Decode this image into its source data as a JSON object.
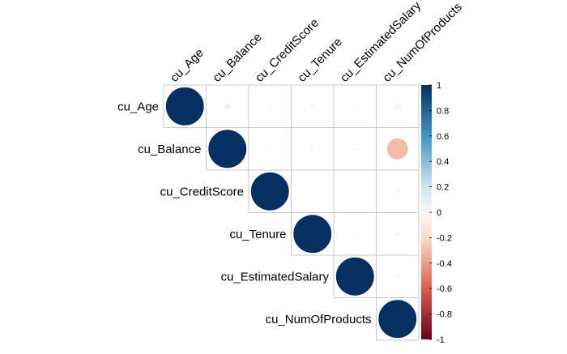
{
  "chart_data": {
    "type": "heatmap",
    "subtype": "correlation-matrix-circle-upper",
    "variables": [
      "cu_Age",
      "cu_Balance",
      "cu_CreditScore",
      "cu_Tenure",
      "cu_EstimatedSalary",
      "cu_NumOfProducts"
    ],
    "matrix": [
      [
        1.0,
        0.03,
        -0.004,
        -0.01,
        -0.007,
        -0.03
      ],
      [
        0.03,
        1.0,
        0.006,
        -0.012,
        0.013,
        -0.3
      ],
      [
        -0.004,
        0.006,
        1.0,
        0.001,
        -0.001,
        0.012
      ],
      [
        -0.01,
        -0.012,
        0.001,
        1.0,
        0.008,
        0.013
      ],
      [
        -0.007,
        0.013,
        -0.001,
        0.008,
        1.0,
        0.014
      ],
      [
        -0.03,
        -0.3,
        0.012,
        0.013,
        0.014,
        1.0
      ]
    ],
    "colorbar": {
      "ticks": [
        "1",
        "0.8",
        "0.6",
        "0.4",
        "0.2",
        "0",
        "-0.2",
        "-0.4",
        "-0.6",
        "-0.8",
        "-1"
      ],
      "range": [
        -1,
        1
      ],
      "colors": {
        "neg1": "#67001F",
        "neg06": "#D6604D",
        "neg02": "#FDDBC7",
        "zero": "#F7F7F7",
        "pos02": "#D1E5F0",
        "pos06": "#4393C3",
        "pos1": "#053061"
      }
    },
    "grid": true,
    "legend_position": "right"
  }
}
